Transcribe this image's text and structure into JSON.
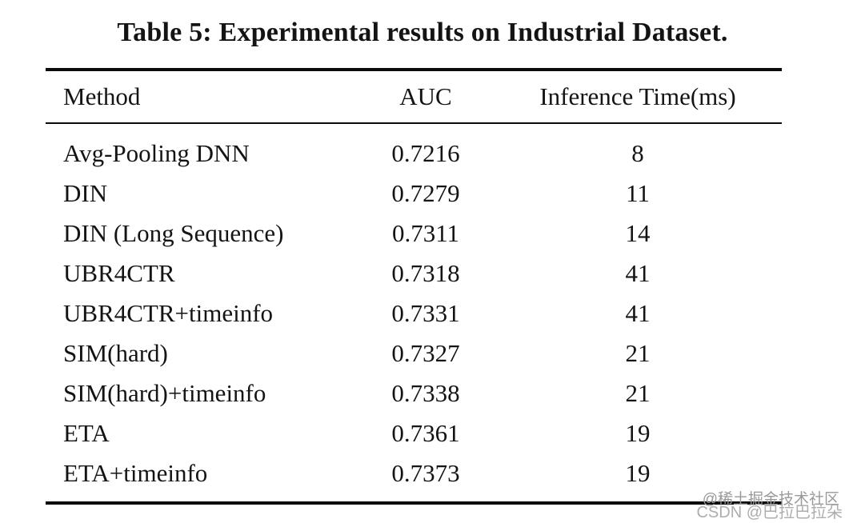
{
  "title": "Table 5: Experimental results on Industrial Dataset.",
  "table": {
    "columns": [
      "Method",
      "AUC",
      "Inference Time(ms)"
    ],
    "rows": [
      {
        "method": "Avg-Pooling DNN",
        "auc": "0.7216",
        "time": "8"
      },
      {
        "method": "DIN",
        "auc": "0.7279",
        "time": "11"
      },
      {
        "method": "DIN (Long Sequence)",
        "auc": "0.7311",
        "time": "14"
      },
      {
        "method": "UBR4CTR",
        "auc": "0.7318",
        "time": "41"
      },
      {
        "method": "UBR4CTR+timeinfo",
        "auc": "0.7331",
        "time": "41"
      },
      {
        "method": "SIM(hard)",
        "auc": "0.7327",
        "time": "21"
      },
      {
        "method": "SIM(hard)+timeinfo",
        "auc": "0.7338",
        "time": "21"
      },
      {
        "method": "ETA",
        "auc": "0.7361",
        "time": "19"
      },
      {
        "method": "ETA+timeinfo",
        "auc": "0.7373",
        "time": "19"
      }
    ]
  },
  "watermarks": {
    "juejin": "@稀土掘金技术社区",
    "csdn": "CSDN @巴拉巴拉朵"
  },
  "colors": {
    "text": "#141414",
    "rule": "#0b0b0b",
    "background": "#ffffff",
    "watermark_juejin": "#999999",
    "watermark_csdn": "#adadad"
  }
}
